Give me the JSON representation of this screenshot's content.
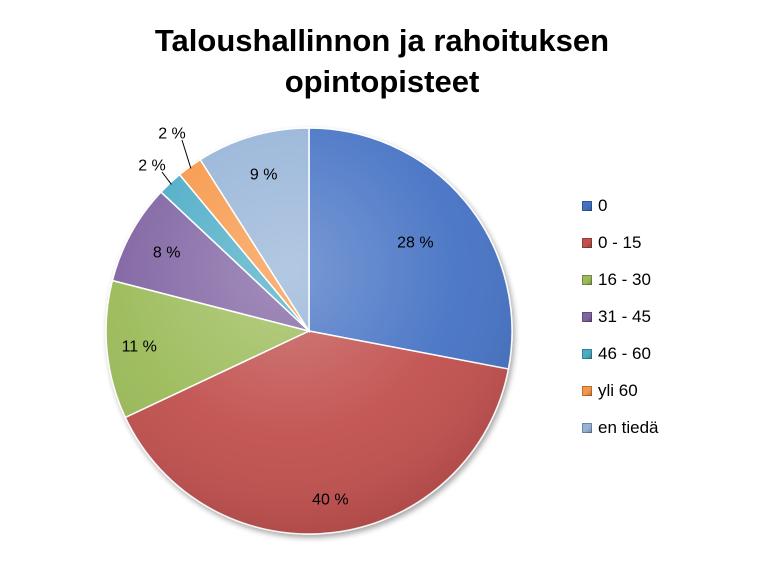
{
  "chart_data": {
    "type": "pie",
    "title_lines": [
      "Taloushallinnon ja rahoituksen",
      "opintopisteet"
    ],
    "categories": [
      "0",
      "0 - 15",
      "16 - 30",
      "31 - 45",
      "46 - 60",
      "yli 60",
      "en tiedä"
    ],
    "values": [
      28,
      40,
      11,
      8,
      2,
      2,
      9
    ],
    "labels": [
      "28 %",
      "40 %",
      "11 %",
      "8 %",
      "2 %",
      "2 %",
      "9 %"
    ],
    "colors": [
      "#4472C4",
      "#C0504D",
      "#9BBB59",
      "#8064A2",
      "#4BACC6",
      "#F79646",
      "#95B3D7"
    ],
    "legend_position": "right",
    "start_angle_deg": 0,
    "direction": "clockwise"
  }
}
